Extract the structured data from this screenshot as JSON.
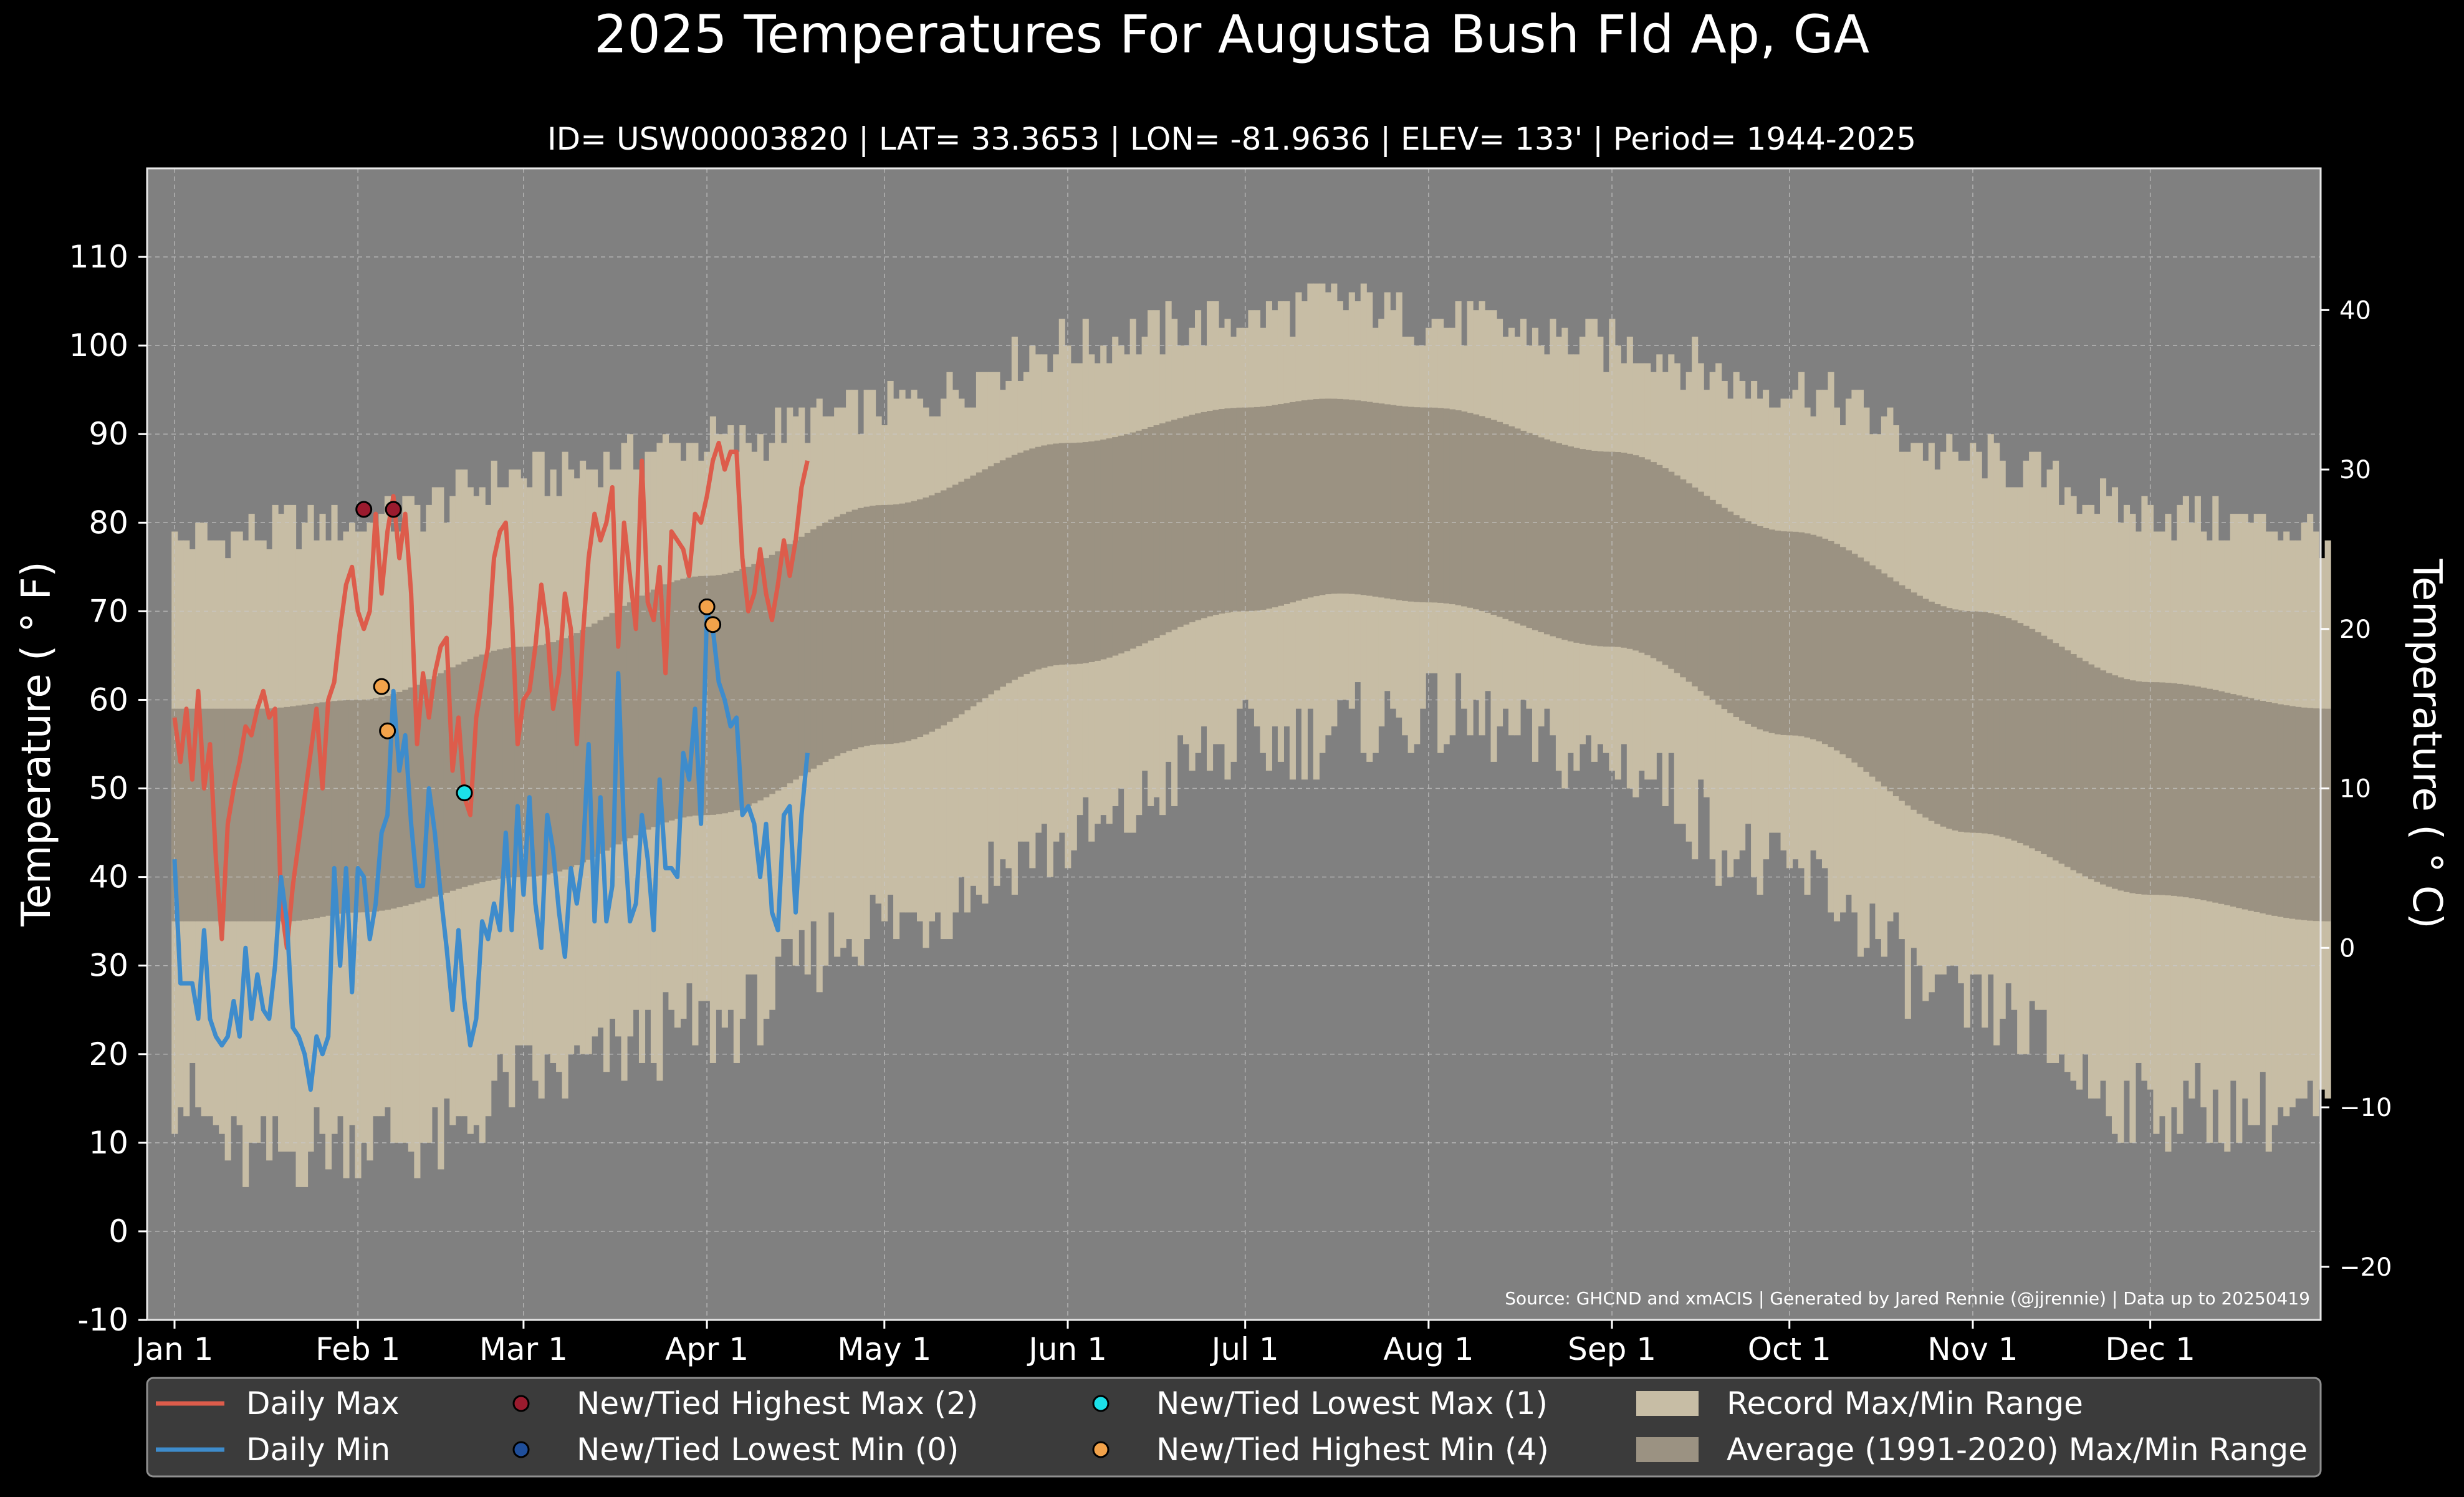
{
  "chart_data": {
    "type": "line",
    "title": "2025 Temperatures For Augusta Bush Fld Ap, GA",
    "subtitle": "ID= USW00003820 | LAT= 33.3653 | LON= -81.9636 | ELEV= 133' | Period= 1944-2025",
    "ylabel_left": "Temperature ( ° F)",
    "ylabel_right": "Temperature ( ° C)",
    "source": "Source: GHCND and xmACIS | Generated by Jared Rennie (@jjrennie) | Data up to 20250419",
    "y_ticks_f": [
      "-10",
      "0",
      "10",
      "20",
      "30",
      "40",
      "50",
      "60",
      "70",
      "80",
      "90",
      "100",
      "110"
    ],
    "y_ticks_c": [
      "−20",
      "−10",
      "0",
      "10",
      "20",
      "30",
      "40"
    ],
    "ylim_f": [
      -10,
      120
    ],
    "x_ticks": [
      "Jan 1",
      "Feb 1",
      "Mar 1",
      "Apr 1",
      "May 1",
      "Jun 1",
      "Jul 1",
      "Aug 1",
      "Sep 1",
      "Oct 1",
      "Nov 1",
      "Dec 1"
    ],
    "grid": true,
    "legend": {
      "placement": "bottom",
      "items": [
        {
          "label": "Daily Max",
          "kind": "line",
          "color": "#dd5c4b"
        },
        {
          "label": "Daily Min",
          "kind": "line",
          "color": "#3e8ccc"
        },
        {
          "label": "New/Tied Highest Max (2)",
          "kind": "dot",
          "color": "#9a1b2e"
        },
        {
          "label": "New/Tied Lowest Min (0)",
          "kind": "dot",
          "color": "#1f4e9a"
        },
        {
          "label": "New/Tied Lowest Max (1)",
          "kind": "dot",
          "color": "#1ce0e8"
        },
        {
          "label": "New/Tied Highest Min (4)",
          "kind": "dot",
          "color": "#f2a24a"
        },
        {
          "label": "Record Max/Min Range",
          "kind": "box",
          "color": "#c7bda5"
        },
        {
          "label": "Average (1991-2020) Max/Min Range",
          "kind": "box",
          "color": "#9b9282"
        }
      ]
    },
    "colors": {
      "plot_bg": "#808080",
      "record": "#c7bda5",
      "normal": "#9b9282",
      "max_line": "#dd5c4b",
      "min_line": "#3e8ccc"
    },
    "record_max_anchors": [
      [
        1,
        78
      ],
      [
        32,
        80
      ],
      [
        60,
        85
      ],
      [
        91,
        89
      ],
      [
        121,
        93
      ],
      [
        152,
        100
      ],
      [
        182,
        103
      ],
      [
        196,
        105
      ],
      [
        213,
        103
      ],
      [
        244,
        100
      ],
      [
        274,
        95
      ],
      [
        305,
        87
      ],
      [
        335,
        81
      ],
      [
        365,
        79
      ]
    ],
    "record_min_anchors": [
      [
        1,
        15
      ],
      [
        14,
        8
      ],
      [
        32,
        11
      ],
      [
        46,
        10
      ],
      [
        60,
        17
      ],
      [
        91,
        23
      ],
      [
        121,
        35
      ],
      [
        152,
        44
      ],
      [
        182,
        55
      ],
      [
        213,
        58
      ],
      [
        244,
        53
      ],
      [
        274,
        40
      ],
      [
        305,
        25
      ],
      [
        335,
        14
      ],
      [
        365,
        13
      ]
    ],
    "normal_max_anchors": [
      [
        1,
        59
      ],
      [
        15,
        59
      ],
      [
        32,
        60
      ],
      [
        60,
        66
      ],
      [
        91,
        74
      ],
      [
        121,
        82
      ],
      [
        152,
        89
      ],
      [
        182,
        93
      ],
      [
        196,
        94
      ],
      [
        213,
        93
      ],
      [
        244,
        88
      ],
      [
        274,
        79
      ],
      [
        305,
        70
      ],
      [
        335,
        62
      ],
      [
        365,
        59
      ]
    ],
    "normal_min_anchors": [
      [
        1,
        35
      ],
      [
        20,
        35
      ],
      [
        32,
        36
      ],
      [
        60,
        40
      ],
      [
        91,
        47
      ],
      [
        121,
        55
      ],
      [
        152,
        64
      ],
      [
        182,
        70
      ],
      [
        198,
        72
      ],
      [
        213,
        71
      ],
      [
        244,
        66
      ],
      [
        274,
        56
      ],
      [
        305,
        45
      ],
      [
        335,
        38
      ],
      [
        365,
        35
      ]
    ],
    "daily_max": [
      58,
      53,
      59,
      51,
      61,
      50,
      55,
      42,
      33,
      46,
      50,
      53,
      57,
      56,
      59,
      61,
      58,
      59,
      37,
      32,
      39,
      44,
      49,
      54,
      59,
      50,
      60,
      62,
      68,
      73,
      75,
      70,
      68,
      70,
      81,
      72,
      79,
      83,
      76,
      81,
      72,
      55,
      63,
      58,
      63,
      66,
      67,
      52,
      58,
      49,
      47,
      58,
      62,
      66,
      76,
      79,
      80,
      70,
      55,
      60,
      61,
      66,
      73,
      68,
      59,
      63,
      72,
      68,
      55,
      67,
      76,
      81,
      78,
      80,
      84,
      66,
      80,
      74,
      68,
      87,
      71,
      69,
      75,
      63,
      79,
      78,
      77,
      74,
      81,
      80,
      83,
      87,
      89,
      86,
      88,
      88,
      76,
      70,
      72,
      77,
      72,
      69,
      73,
      78,
      74,
      78,
      84,
      87
    ],
    "daily_min": [
      42,
      28,
      28,
      28,
      24,
      34,
      24,
      22,
      21,
      22,
      26,
      22,
      32,
      24,
      29,
      25,
      24,
      30,
      40,
      35,
      23,
      22,
      20,
      16,
      22,
      20,
      22,
      41,
      30,
      41,
      27,
      41,
      40,
      33,
      37,
      45,
      47,
      61,
      52,
      56,
      46,
      39,
      39,
      50,
      45,
      38,
      32,
      25,
      34,
      26,
      21,
      24,
      35,
      33,
      37,
      34,
      45,
      34,
      48,
      38,
      49,
      37,
      32,
      47,
      43,
      36,
      31,
      41,
      37,
      42,
      55,
      35,
      49,
      35,
      39,
      63,
      45,
      35,
      37,
      47,
      42,
      34,
      51,
      41,
      41,
      40,
      54,
      51,
      59,
      46,
      70,
      68,
      62,
      60,
      57,
      58,
      47,
      48,
      46,
      40,
      46,
      36,
      34,
      47,
      48,
      36,
      47,
      54
    ],
    "markers": [
      {
        "series": "New/Tied Highest Max (2)",
        "x": 33,
        "y": 81.5
      },
      {
        "series": "New/Tied Highest Max (2)",
        "x": 38,
        "y": 81.5
      },
      {
        "series": "New/Tied Highest Min (4)",
        "x": 36,
        "y": 61.5
      },
      {
        "series": "New/Tied Highest Min (4)",
        "x": 37,
        "y": 56.5
      },
      {
        "series": "New/Tied Lowest Max (1)",
        "x": 50,
        "y": 49.5
      },
      {
        "series": "New/Tied Highest Min (4)",
        "x": 91,
        "y": 70.5
      },
      {
        "series": "New/Tied Highest Min (4)",
        "x": 92,
        "y": 68.5
      }
    ]
  }
}
